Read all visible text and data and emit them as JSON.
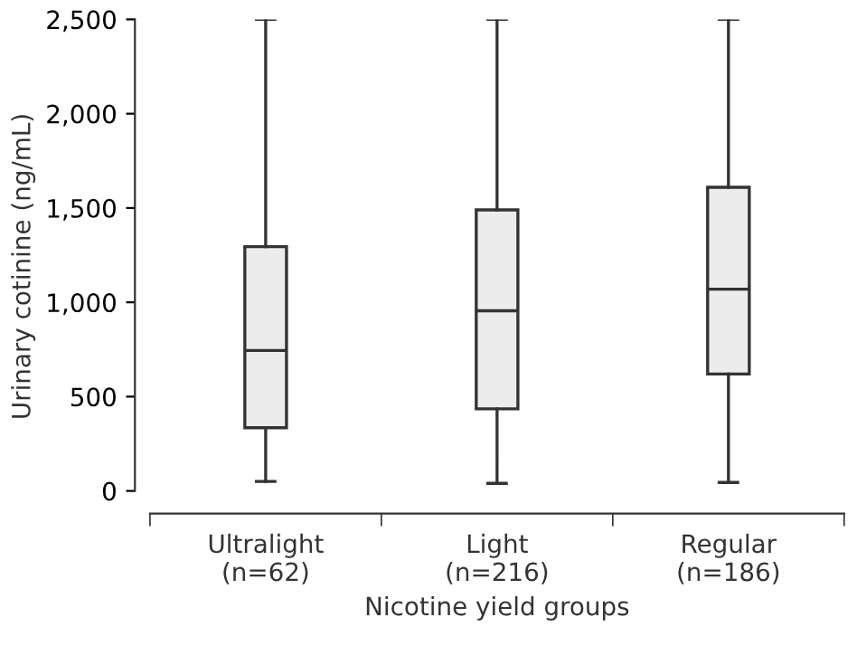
{
  "chart_data": {
    "type": "box",
    "xlabel": "Nicotine yield groups",
    "ylabel": "Urinary cotinine (ng/mL)",
    "categories": [
      "Ultralight\n(n=62)",
      "Light\n(n=216)",
      "Regular\n(n=186)"
    ],
    "boxes": [
      {
        "low": 50,
        "q1": 335,
        "median": 745,
        "q3": 1295,
        "high": 2500
      },
      {
        "low": 40,
        "q1": 435,
        "median": 955,
        "q3": 1490,
        "high": 2500
      },
      {
        "low": 45,
        "q1": 620,
        "median": 1070,
        "q3": 1610,
        "high": 2500
      }
    ],
    "color": "#ececec",
    "ylim": [
      -120,
      2500
    ],
    "yticks": [
      0,
      {
        "value": 500,
        "label": "500"
      },
      {
        "value": 1000,
        "label": "1,000"
      },
      {
        "value": 1500,
        "label": "1,500"
      },
      {
        "value": 2000,
        "label": "2,000"
      },
      {
        "value": 2500,
        "label": "2,500"
      }
    ],
    "grid": false
  }
}
